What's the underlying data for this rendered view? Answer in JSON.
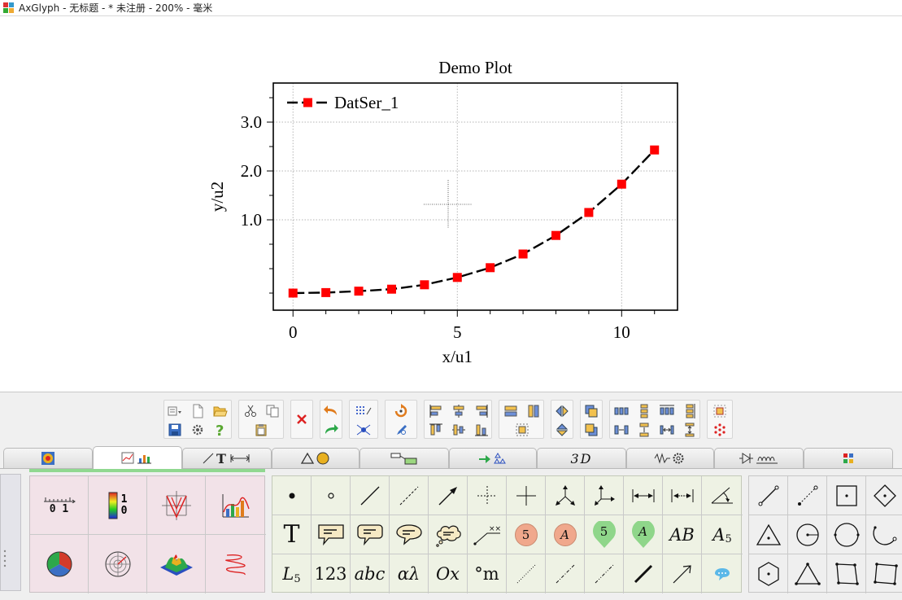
{
  "window": {
    "title": "AxGlyph - 无标题 - * 未注册 - 200% - 毫米"
  },
  "chart_data": {
    "type": "line",
    "title": "Demo Plot",
    "xlabel": "x/u1",
    "ylabel": "y/u2",
    "xlim": [
      -0.6,
      11.7
    ],
    "ylim": [
      -0.85,
      3.8
    ],
    "xticks": [
      0,
      5,
      10
    ],
    "xtick_labels": [
      "0",
      "5",
      "10"
    ],
    "yticks": [
      1.0,
      2.0,
      3.0
    ],
    "ytick_labels": [
      "1.0",
      "2.0",
      "3.0"
    ],
    "grid": true,
    "legend_position": "top-left",
    "series": [
      {
        "name": "DatSer_1",
        "color": "#000000",
        "marker_color": "#ff0000",
        "x": [
          0,
          1,
          2,
          3,
          4,
          5,
          6,
          7,
          8,
          9,
          10,
          11
        ],
        "y": [
          -0.5,
          -0.49,
          -0.46,
          -0.42,
          -0.33,
          -0.18,
          0.02,
          0.3,
          0.68,
          1.15,
          1.73,
          2.43
        ]
      }
    ]
  },
  "tabs": [
    {
      "icon": "color-map-icon",
      "active": false
    },
    {
      "icon": "chart-icon",
      "active": true
    },
    {
      "icon": "line-text-dimension-icon",
      "active": false
    },
    {
      "icon": "shapes-icon",
      "active": false
    },
    {
      "icon": "flowchart-icon",
      "active": false
    },
    {
      "icon": "chemistry-icon",
      "active": false
    },
    {
      "icon": "3d-icon",
      "label": "3D",
      "active": false
    },
    {
      "icon": "mechanics-icon",
      "active": false
    },
    {
      "icon": "circuit-icon",
      "active": false
    },
    {
      "icon": "more-icon",
      "active": false
    }
  ],
  "palette": {
    "axis_scale_label": "0 1",
    "colorbar_labels": [
      "1",
      "0"
    ],
    "annotations": {
      "text_T": "T",
      "badge_5": "5",
      "badge_A": "A",
      "pin_5": "5",
      "pin_A": "A",
      "AB": "AB",
      "A5_base": "A",
      "A5_sub": "5",
      "L5_base": "L",
      "L5_sub": "5",
      "num": "123",
      "abc": "abc",
      "alpha_lambda": "αλ",
      "Ox": "Ox",
      "deg_m": "°m"
    }
  }
}
